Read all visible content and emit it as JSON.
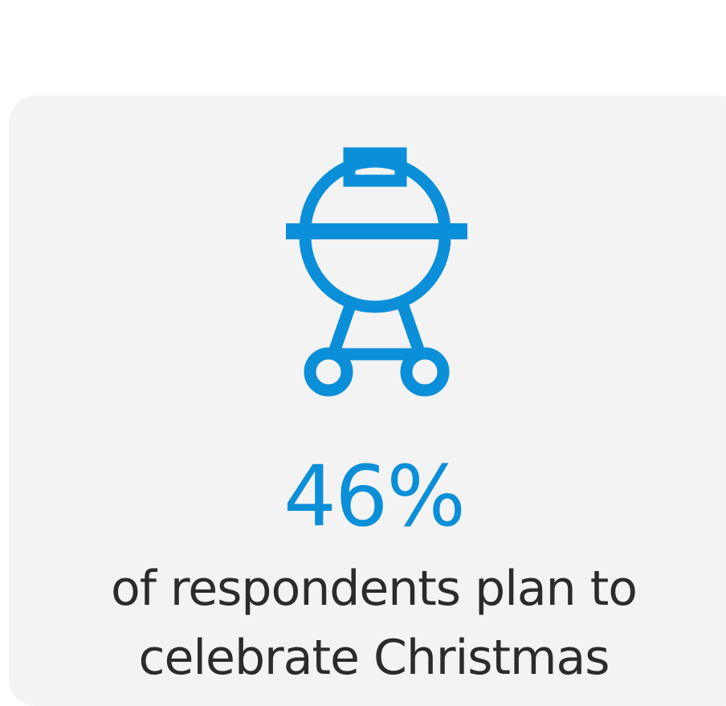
{
  "colors": {
    "accent": "#0a8fd8",
    "card_background": "#f3f3f3",
    "text": "#2b2b2b"
  },
  "icon": "grill-icon",
  "stat": {
    "value": "46%",
    "caption": "of respondents plan to\ncelebrate Christmas"
  }
}
